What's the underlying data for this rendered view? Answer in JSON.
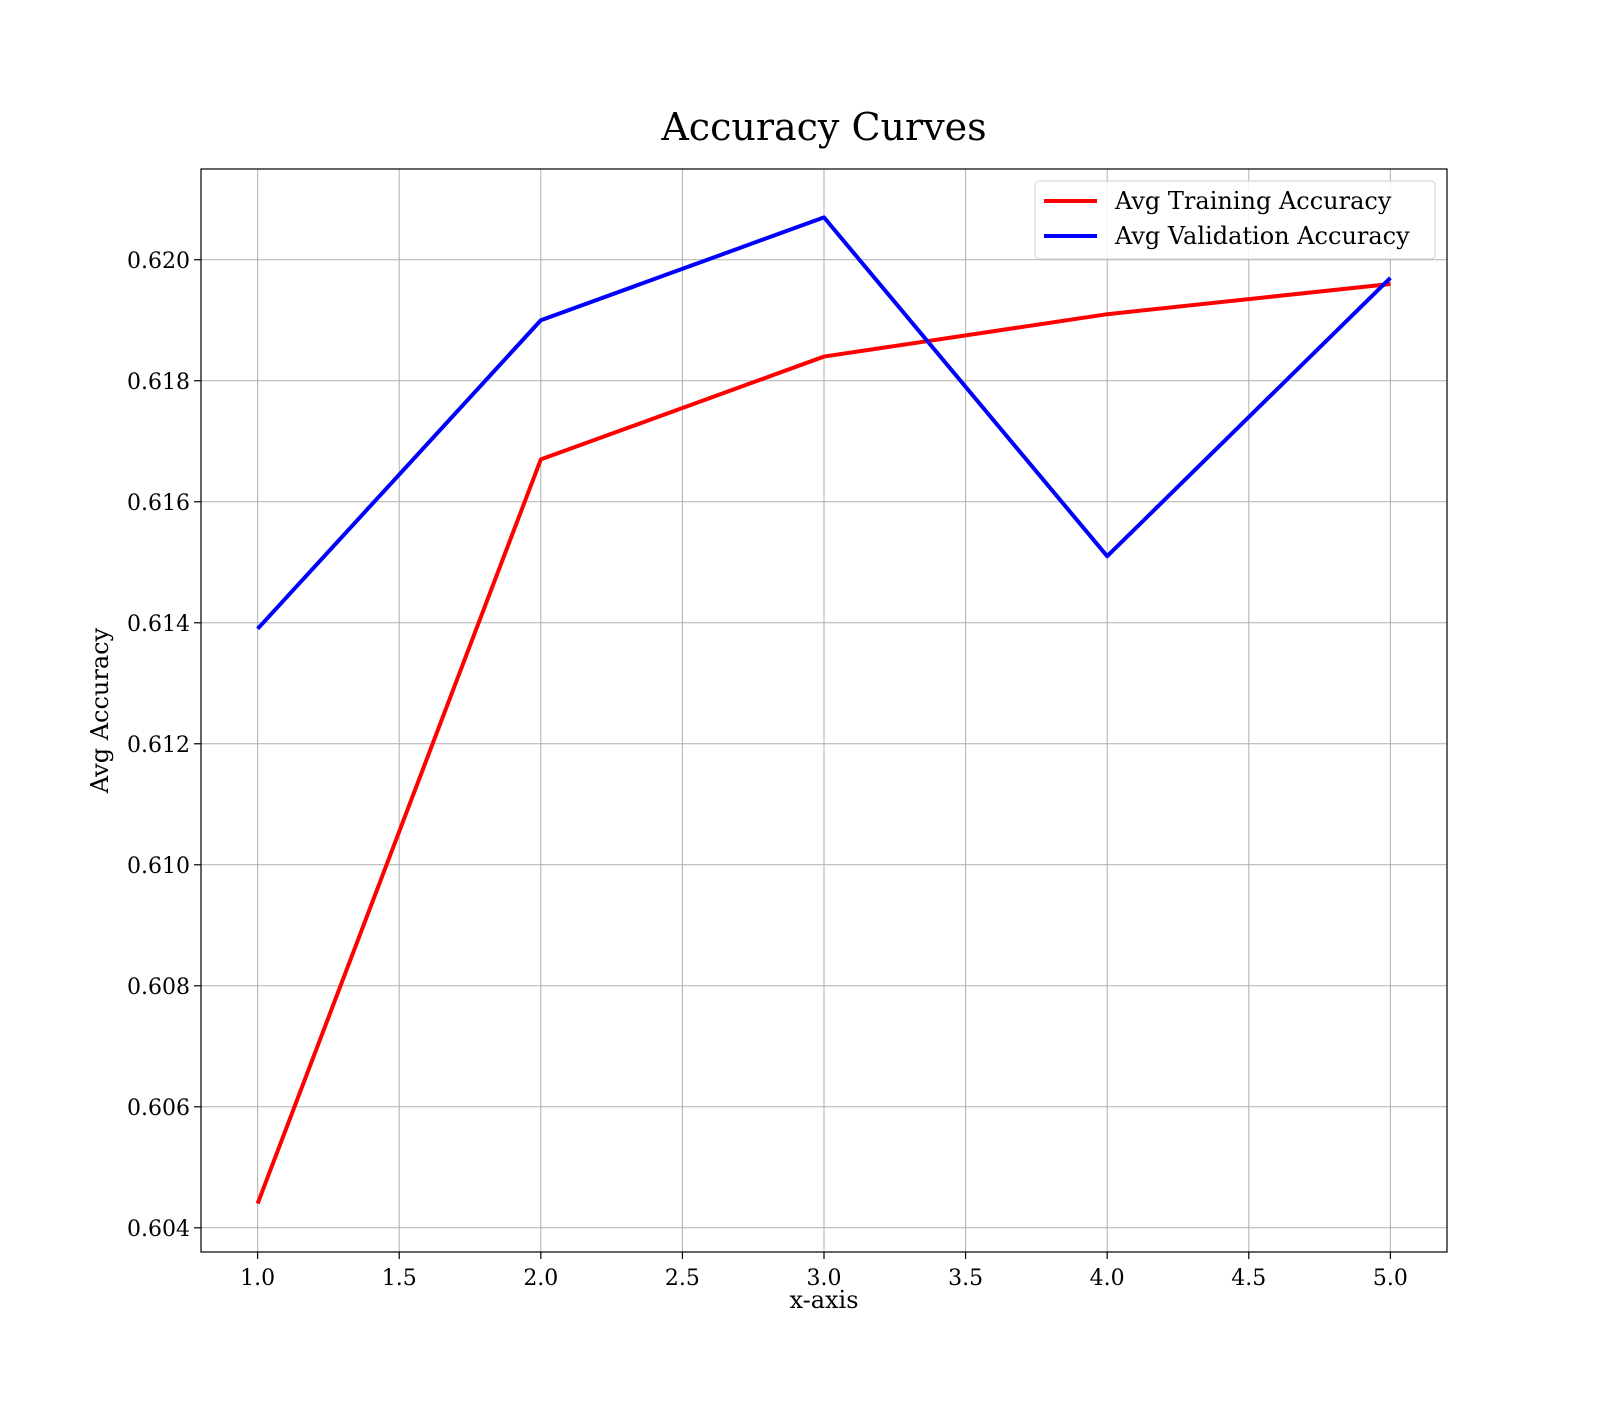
{
  "chart_data": {
    "type": "line",
    "title": "Accuracy Curves",
    "xlabel": "x-axis",
    "ylabel": "Avg Accuracy",
    "x": [
      1,
      2,
      3,
      4,
      5
    ],
    "xlim": [
      0.8,
      5.2
    ],
    "ylim": [
      0.6036,
      0.6215
    ],
    "xticks": [
      1.0,
      1.5,
      2.0,
      2.5,
      3.0,
      3.5,
      4.0,
      4.5,
      5.0
    ],
    "xtick_labels": [
      "1.0",
      "1.5",
      "2.0",
      "2.5",
      "3.0",
      "3.5",
      "4.0",
      "4.5",
      "5.0"
    ],
    "yticks": [
      0.604,
      0.606,
      0.608,
      0.61,
      0.612,
      0.614,
      0.616,
      0.618,
      0.62
    ],
    "ytick_labels": [
      "0.604",
      "0.606",
      "0.608",
      "0.610",
      "0.612",
      "0.614",
      "0.616",
      "0.618",
      "0.620"
    ],
    "grid": true,
    "legend_position": "top-right",
    "series": [
      {
        "name": "Avg Training Accuracy",
        "color": "#ff0000",
        "values": [
          0.6044,
          0.6167,
          0.6184,
          0.6191,
          0.6196
        ]
      },
      {
        "name": "Avg Validation Accuracy",
        "color": "#0000ff",
        "values": [
          0.6139,
          0.619,
          0.6207,
          0.6151,
          0.6197
        ]
      }
    ]
  }
}
